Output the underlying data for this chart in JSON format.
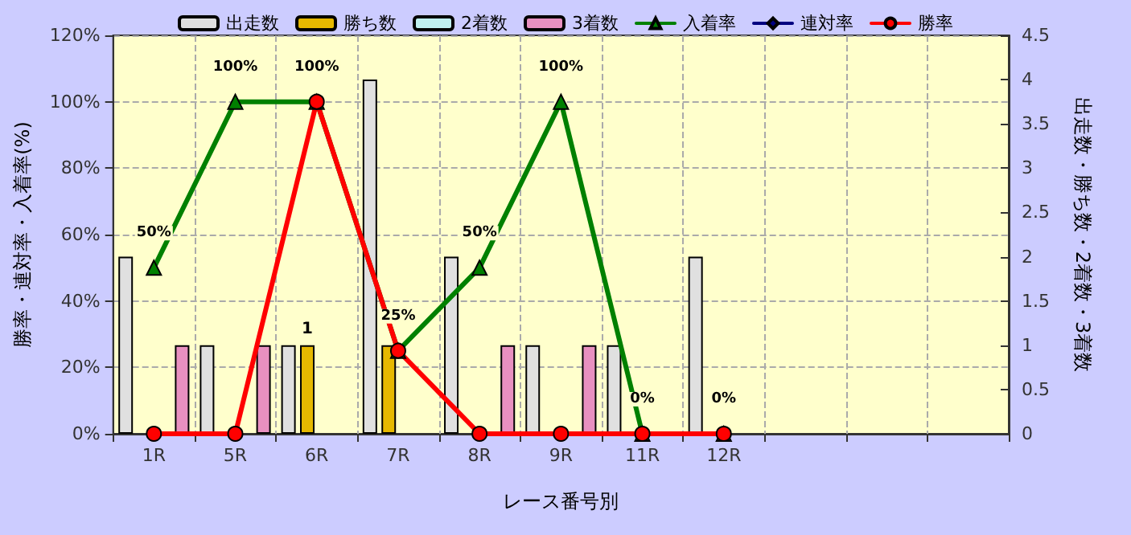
{
  "chart_data": {
    "type": "bar",
    "xlabel": "レース番号別",
    "ylabel": "勝率・連対率・入着率(%)",
    "y2label": "出走数・勝ち数・2着数・3着数",
    "categories": [
      "1R",
      "5R",
      "6R",
      "7R",
      "8R",
      "9R",
      "11R",
      "12R",
      null,
      null,
      null
    ],
    "series": [
      {
        "name": "出走数",
        "axis": "y2",
        "color": "#e0e0e0",
        "values": [
          2,
          1,
          1,
          4,
          2,
          1,
          1,
          2,
          null,
          null,
          null
        ]
      },
      {
        "name": "勝ち数",
        "axis": "y2",
        "color": "#e6b800",
        "values": [
          0,
          0,
          1,
          1,
          0,
          0,
          0,
          0,
          null,
          null,
          null
        ],
        "value_labels": [
          null,
          null,
          "1",
          null,
          null,
          null,
          null,
          null,
          null,
          null,
          null
        ]
      },
      {
        "name": "2着数",
        "axis": "y2",
        "color": "#c0f0f0",
        "values": [
          0,
          0,
          0,
          0,
          0,
          0,
          0,
          0,
          null,
          null,
          null
        ]
      },
      {
        "name": "3着数",
        "axis": "y2",
        "color": "#e890c0",
        "values": [
          1,
          1,
          0,
          0,
          1,
          1,
          0,
          0,
          null,
          null,
          null
        ]
      },
      {
        "name": "入着率",
        "type": "line",
        "color": "#008000",
        "marker": "triangle",
        "values": [
          50,
          100,
          100,
          25,
          50,
          100,
          0,
          0,
          null,
          null,
          null
        ],
        "value_labels": [
          "50%",
          "100%",
          "100%",
          "25%",
          "50%",
          "100%",
          "0%",
          "0%",
          null,
          null,
          null
        ]
      },
      {
        "name": "連対率",
        "type": "line",
        "color": "#000080",
        "marker": "diamond",
        "values": [
          null,
          null,
          null,
          null,
          null,
          null,
          null,
          null,
          null,
          null,
          null
        ]
      },
      {
        "name": "勝率",
        "type": "line",
        "color": "#ff0000",
        "marker": "circle",
        "values": [
          0,
          0,
          100,
          25,
          0,
          0,
          0,
          0,
          null,
          null,
          null
        ]
      }
    ],
    "ylim": [
      0,
      120
    ],
    "yticks": [
      {
        "value": 0,
        "label": "0%"
      },
      {
        "value": 20,
        "label": "20%"
      },
      {
        "value": 40,
        "label": "40%"
      },
      {
        "value": 60,
        "label": "60%"
      },
      {
        "value": 80,
        "label": "80%"
      },
      {
        "value": 100,
        "label": "100%"
      },
      {
        "value": 120,
        "label": "120%"
      }
    ],
    "y2lim": [
      0,
      4.5
    ],
    "y2ticks": [
      0,
      0.5,
      1,
      1.5,
      2,
      2.5,
      3,
      3.5,
      4,
      4.5
    ],
    "grid": true,
    "legend": "top"
  }
}
